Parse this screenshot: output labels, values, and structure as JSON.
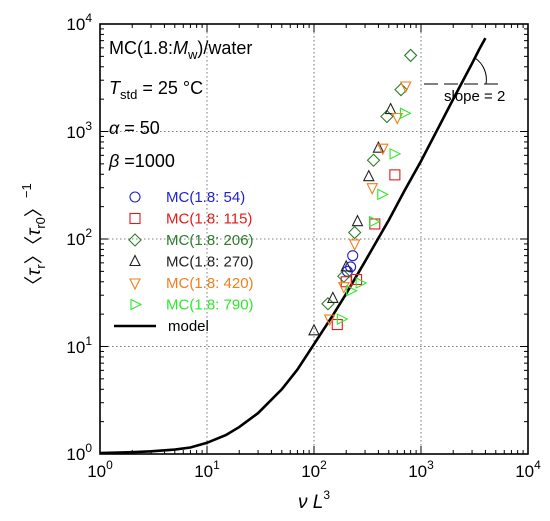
{
  "chart_data": {
    "type": "scatter",
    "x_scale": "log",
    "y_scale": "log",
    "xlim": [
      1,
      10000
    ],
    "ylim": [
      1,
      10000
    ],
    "x_ticks": [
      {
        "base": "10",
        "exp": "0",
        "value": 1
      },
      {
        "base": "10",
        "exp": "1",
        "value": 10
      },
      {
        "base": "10",
        "exp": "2",
        "value": 100
      },
      {
        "base": "10",
        "exp": "3",
        "value": 1000
      },
      {
        "base": "10",
        "exp": "4",
        "value": 10000
      }
    ],
    "y_ticks": [
      {
        "base": "10",
        "exp": "0",
        "value": 1
      },
      {
        "base": "10",
        "exp": "1",
        "value": 10
      },
      {
        "base": "10",
        "exp": "2",
        "value": 100
      },
      {
        "base": "10",
        "exp": "3",
        "value": 1000
      },
      {
        "base": "10",
        "exp": "4",
        "value": 10000
      }
    ],
    "xlabel": {
      "nu": "ν",
      "L": "L",
      "exp": "3"
    },
    "ylabel": {
      "lt": "〈",
      "tau": "τ",
      "sub_r": "r",
      "gt": "〉",
      "sub_r0": "r0",
      "exp": "−1"
    },
    "grid": "dotted",
    "annotations": {
      "system": {
        "prefix": "MC(1.8:",
        "mw": "M",
        "mw_sub": "w",
        "suffix": ")/water"
      },
      "temperature": {
        "t": "T",
        "sub": "std",
        "value": " = 25 °C"
      },
      "alpha": {
        "symbol": "α",
        "value": " =   50"
      },
      "beta": {
        "symbol": "β",
        "value": " =1000"
      },
      "slope": "slope = 2"
    },
    "series": [
      {
        "name": "MC(1.8: 54)",
        "marker": "circle",
        "color": "#1f1fd6",
        "points": [
          [
            205,
            50
          ],
          [
            220,
            55
          ],
          [
            230,
            70
          ]
        ]
      },
      {
        "name": "MC(1.8: 115)",
        "marker": "square",
        "color": "#e41a1a",
        "points": [
          [
            165,
            16
          ],
          [
            200,
            40
          ],
          [
            250,
            42
          ],
          [
            370,
            138
          ],
          [
            570,
            395
          ]
        ]
      },
      {
        "name": "MC(1.8: 206)",
        "marker": "diamond",
        "color": "#2b7d2b",
        "points": [
          [
            135,
            25
          ],
          [
            190,
            45
          ],
          [
            240,
            115
          ],
          [
            360,
            540
          ],
          [
            480,
            1380
          ],
          [
            650,
            2450
          ],
          [
            800,
            5100
          ]
        ]
      },
      {
        "name": "MC(1.8: 270)",
        "marker": "triangle-up",
        "color": "#222222",
        "points": [
          [
            100,
            14
          ],
          [
            150,
            28
          ],
          [
            200,
            55
          ],
          [
            255,
            145
          ],
          [
            325,
            380
          ],
          [
            400,
            700
          ],
          [
            520,
            1600
          ]
        ]
      },
      {
        "name": "MC(1.8: 420)",
        "marker": "triangle-down",
        "color": "#f07f1c",
        "points": [
          [
            140,
            18
          ],
          [
            190,
            36
          ],
          [
            240,
            90
          ],
          [
            350,
            300
          ],
          [
            440,
            700
          ],
          [
            600,
            1350
          ],
          [
            720,
            2650
          ]
        ]
      },
      {
        "name": "MC(1.8: 790)",
        "marker": "triangle-right",
        "color": "#2ee82e",
        "points": [
          [
            180,
            18
          ],
          [
            220,
            33
          ],
          [
            270,
            39
          ],
          [
            360,
            145
          ],
          [
            430,
            260
          ],
          [
            560,
            620
          ],
          [
            700,
            1480
          ]
        ]
      },
      {
        "name": "model",
        "marker": "line",
        "color": "#000000",
        "model_points": [
          [
            1,
            1.02
          ],
          [
            2,
            1.04
          ],
          [
            3,
            1.06
          ],
          [
            5,
            1.1
          ],
          [
            7,
            1.15
          ],
          [
            10,
            1.27
          ],
          [
            15,
            1.5
          ],
          [
            20,
            1.78
          ],
          [
            30,
            2.4
          ],
          [
            50,
            4.0
          ],
          [
            70,
            6.1
          ],
          [
            100,
            10.5
          ],
          [
            150,
            19.5
          ],
          [
            200,
            31
          ],
          [
            300,
            62
          ],
          [
            500,
            150
          ],
          [
            700,
            280
          ],
          [
            1000,
            530
          ],
          [
            1500,
            1150
          ],
          [
            2000,
            2000
          ],
          [
            3000,
            4300
          ],
          [
            3500,
            5800
          ],
          [
            4000,
            7400
          ]
        ]
      }
    ],
    "legend_placement": "left-middle"
  }
}
